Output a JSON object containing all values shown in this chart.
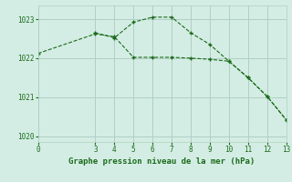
{
  "line1_x": [
    0,
    3,
    4,
    5,
    6,
    7,
    8,
    9,
    10,
    11,
    12,
    13
  ],
  "line1_y": [
    1022.12,
    1022.62,
    1022.55,
    1022.02,
    1022.02,
    1022.02,
    1022.0,
    1021.97,
    1021.92,
    1021.5,
    1021.02,
    1020.42
  ],
  "line2_x": [
    3,
    4,
    5,
    6,
    7,
    8,
    9,
    10,
    11,
    12,
    13
  ],
  "line2_y": [
    1022.65,
    1022.52,
    1022.92,
    1023.05,
    1023.05,
    1022.65,
    1022.35,
    1021.92,
    1021.5,
    1021.02,
    1020.42
  ],
  "color": "#1a6b1a",
  "bg_color": "#d4ede4",
  "grid_color": "#b0cfc4",
  "xlabel": "Graphe pression niveau de la mer (hPa)",
  "xlim": [
    0,
    13
  ],
  "ylim": [
    1019.85,
    1023.35
  ],
  "yticks": [
    1020,
    1021,
    1022,
    1023
  ],
  "xticks": [
    0,
    3,
    4,
    5,
    6,
    7,
    8,
    9,
    10,
    11,
    12,
    13
  ]
}
